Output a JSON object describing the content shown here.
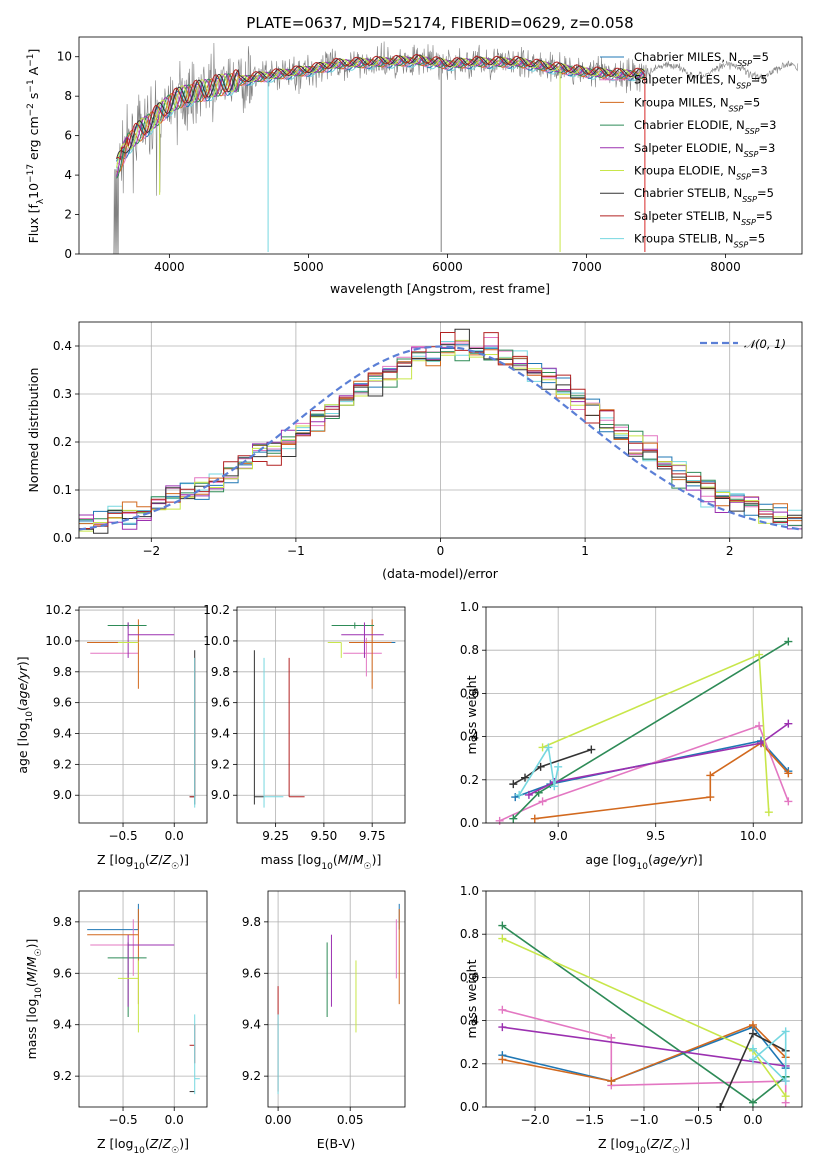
{
  "chart_data": [
    {
      "type": "line",
      "title": "PLATE=0637, MJD=52174, FIBERID=0629, z=0.058",
      "xlabel": "wavelength [Angstrom, rest frame]",
      "ylabel": "Flux [f_λ10^-17 erg cm^-2 s^-1 A^-1]",
      "xlim": [
        3350,
        8550
      ],
      "ylim": [
        0,
        11
      ],
      "xticks": [
        "4000",
        "5000",
        "6000",
        "7000",
        "8000"
      ],
      "yticks": [
        "0",
        "2",
        "4",
        "6",
        "8",
        "10"
      ],
      "grid": false,
      "legend_position": "right",
      "legend": [
        "Chabrier MILES, N_SSP=5",
        "Salpeter MILES, N_SSP=5",
        "Kroupa MILES, N_SSP=5",
        "Chabrier ELODIE, N_SSP=3",
        "Salpeter ELODIE, N_SSP=3",
        "Kroupa ELODIE, N_SSP=3",
        "Chabrier STELIB, N_SSP=5",
        "Salpeter STELIB, N_SSP=5",
        "Kroupa STELIB, N_SSP=5"
      ],
      "series_colors": [
        "#1f77b4",
        "#e377c2",
        "#d2691e",
        "#2e8b57",
        "#9b30b0",
        "#c8e64a",
        "#333333",
        "#b22222",
        "#76d7e0"
      ],
      "data_color": "#808080",
      "continuum": [
        [
          3620,
          4.3
        ],
        [
          3700,
          5.6
        ],
        [
          3800,
          6.3
        ],
        [
          3900,
          6.9
        ],
        [
          4000,
          7.6
        ],
        [
          4100,
          8.0
        ],
        [
          4200,
          8.2
        ],
        [
          4400,
          8.6
        ],
        [
          4600,
          8.9
        ],
        [
          4800,
          9.1
        ],
        [
          5000,
          9.3
        ],
        [
          5200,
          9.6
        ],
        [
          5500,
          9.7
        ],
        [
          5800,
          9.8
        ],
        [
          6000,
          9.6
        ],
        [
          6200,
          9.7
        ],
        [
          6500,
          9.7
        ],
        [
          6800,
          9.4
        ],
        [
          7000,
          9.2
        ],
        [
          7200,
          9.1
        ],
        [
          7400,
          9.1
        ]
      ],
      "model_x_range": [
        3620,
        7420
      ],
      "data_x_range": [
        3600,
        8520
      ]
    },
    {
      "type": "histogram",
      "xlabel": "(data-model)/error",
      "ylabel": "Normed distribution",
      "xlim": [
        -2.5,
        2.5
      ],
      "ylim": [
        0,
        0.45
      ],
      "xticks": [
        "−2",
        "−1",
        "0",
        "1",
        "2"
      ],
      "yticks": [
        "0.0",
        "0.1",
        "0.2",
        "0.3",
        "0.4"
      ],
      "grid": true,
      "legend": [
        "𝒩(0, 1)"
      ],
      "legend_position": "top-right",
      "bin_width": 0.1,
      "normal_curve_mean": 0,
      "normal_curve_sigma": 1
    },
    {
      "type": "errorbar",
      "xlabel": "Z [log10(Z/Z☉)]",
      "ylabel": "age  [log10(age/yr)]",
      "xlim": [
        -0.93,
        0.32
      ],
      "ylim": [
        8.82,
        10.22
      ],
      "xticks": [
        "−0.5",
        "0.0"
      ],
      "yticks": [
        "9.0",
        "9.2",
        "9.4",
        "9.6",
        "9.8",
        "10.0",
        "10.2"
      ],
      "grid": true
    },
    {
      "type": "errorbar",
      "xlabel": "mass [log10(M/M☉)]",
      "ylabel": "",
      "xlim": [
        9.05,
        9.92
      ],
      "ylim": [
        8.82,
        10.22
      ],
      "xticks": [
        "9.25",
        "9.50",
        "9.75"
      ],
      "yticks": [
        "9.0",
        "9.2",
        "9.4",
        "9.6",
        "9.8",
        "10.0",
        "10.2"
      ],
      "grid": true
    },
    {
      "type": "line",
      "xlabel": "age  [log10(age/yr)]",
      "ylabel": "mass weight",
      "xlim": [
        8.63,
        10.25
      ],
      "ylim": [
        0,
        1
      ],
      "xticks": [
        "9.0",
        "9.5",
        "10.0"
      ],
      "yticks": [
        "0.0",
        "0.2",
        "0.4",
        "0.6",
        "0.8",
        "1.0"
      ],
      "grid": true,
      "series": [
        {
          "color": "#1f77b4",
          "x": [
            8.78,
            8.96,
            10.04,
            10.18
          ],
          "y": [
            0.12,
            0.18,
            0.38,
            0.24
          ]
        },
        {
          "color": "#e377c2",
          "x": [
            8.7,
            8.92,
            10.03,
            10.18
          ],
          "y": [
            0.01,
            0.1,
            0.45,
            0.1
          ]
        },
        {
          "color": "#d2691e",
          "x": [
            8.88,
            9.78,
            9.78,
            10.04,
            10.18
          ],
          "y": [
            0.02,
            0.12,
            0.22,
            0.37,
            0.23
          ]
        },
        {
          "color": "#2e8b57",
          "x": [
            8.77,
            8.9,
            10.18
          ],
          "y": [
            0.02,
            0.14,
            0.84
          ]
        },
        {
          "color": "#9b30b0",
          "x": [
            8.85,
            8.98,
            10.04,
            10.18
          ],
          "y": [
            0.13,
            0.19,
            0.37,
            0.46
          ]
        },
        {
          "color": "#c8e64a",
          "x": [
            8.92,
            10.03,
            10.08
          ],
          "y": [
            0.35,
            0.78,
            0.05
          ]
        },
        {
          "color": "#333333",
          "x": [
            8.77,
            8.83,
            8.91,
            9.17
          ],
          "y": [
            0.18,
            0.21,
            0.26,
            0.34
          ]
        },
        {
          "color": "#76d7e0",
          "x": [
            8.8,
            8.95,
            8.98,
            9.0
          ],
          "y": [
            0.13,
            0.35,
            0.17,
            0.26
          ]
        }
      ]
    },
    {
      "type": "errorbar",
      "xlabel": "Z [log10(Z/Z☉)]",
      "ylabel": "mass [log10(M/M☉)]",
      "xlim": [
        -0.93,
        0.32
      ],
      "ylim": [
        9.08,
        9.92
      ],
      "xticks": [
        "−0.5",
        "0.0"
      ],
      "yticks": [
        "9.2",
        "9.4",
        "9.6",
        "9.8"
      ],
      "grid": true
    },
    {
      "type": "errorbar",
      "xlabel": "E(B-V)",
      "ylabel": "",
      "xlim": [
        -0.007,
        0.088
      ],
      "ylim": [
        9.08,
        9.92
      ],
      "xticks": [
        "0.00",
        "0.05"
      ],
      "yticks": [
        "9.2",
        "9.4",
        "9.6",
        "9.8"
      ],
      "grid": true
    },
    {
      "type": "line",
      "xlabel": "Z [log10(Z/Z☉)]",
      "ylabel": "mass weight",
      "xlim": [
        -2.45,
        0.45
      ],
      "ylim": [
        0,
        1
      ],
      "xticks": [
        "−2.0",
        "−1.5",
        "−1.0",
        "−0.5",
        "0.0"
      ],
      "yticks": [
        "0.0",
        "0.2",
        "0.4",
        "0.6",
        "0.8",
        "1.0"
      ],
      "grid": true,
      "series": [
        {
          "color": "#1f77b4",
          "x": [
            -2.3,
            -1.3,
            0.0,
            0.3
          ],
          "y": [
            0.24,
            0.12,
            0.37,
            0.18
          ]
        },
        {
          "color": "#e377c2",
          "x": [
            -2.3,
            -1.3,
            -1.3,
            0.3,
            0.3
          ],
          "y": [
            0.45,
            0.32,
            0.1,
            0.12,
            0.02
          ]
        },
        {
          "color": "#d2691e",
          "x": [
            -2.3,
            -1.3,
            0.0,
            0.3
          ],
          "y": [
            0.22,
            0.12,
            0.38,
            0.23
          ]
        },
        {
          "color": "#2e8b57",
          "x": [
            -2.3,
            0.0,
            0.3
          ],
          "y": [
            0.84,
            0.02,
            0.14
          ]
        },
        {
          "color": "#9b30b0",
          "x": [
            -2.3,
            0.3
          ],
          "y": [
            0.37,
            0.19
          ]
        },
        {
          "color": "#c8e64a",
          "x": [
            -2.3,
            0.0,
            0.3
          ],
          "y": [
            0.78,
            0.26,
            0.05
          ]
        },
        {
          "color": "#333333",
          "x": [
            -0.3,
            0.0,
            0.3
          ],
          "y": [
            0.0,
            0.34,
            0.26
          ]
        },
        {
          "color": "#76d7e0",
          "x": [
            0.0,
            0.3,
            0.3,
            0.0
          ],
          "y": [
            0.22,
            0.35,
            0.12,
            0.27
          ]
        }
      ]
    }
  ]
}
